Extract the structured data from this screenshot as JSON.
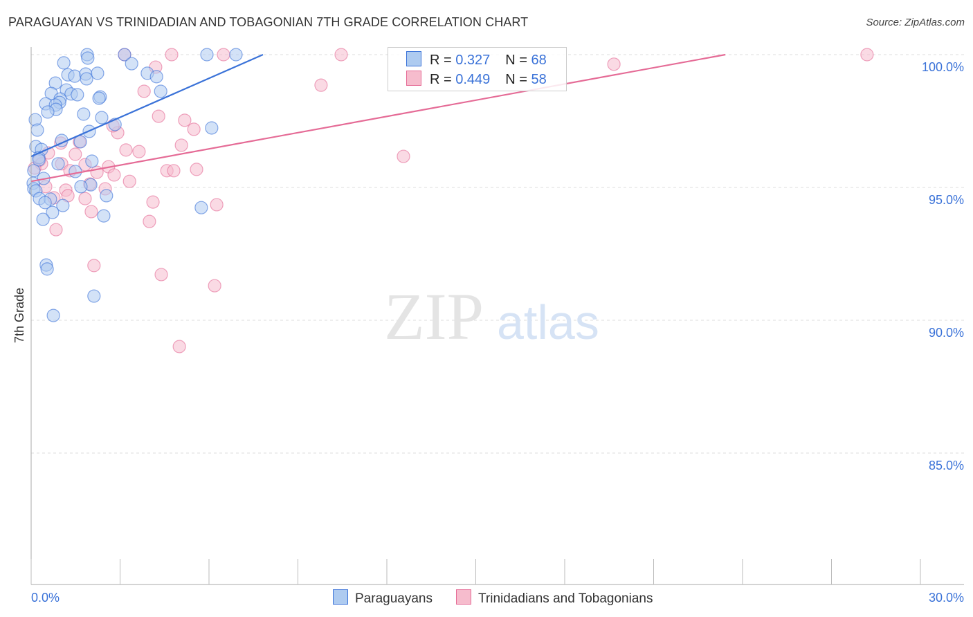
{
  "title": "PARAGUAYAN VS TRINIDADIAN AND TOBAGONIAN 7TH GRADE CORRELATION CHART",
  "source": "Source: ZipAtlas.com",
  "watermark": "ZIPatlas",
  "colors": {
    "blue": "#3a72d8",
    "blue_fill": "#aecbf0",
    "pink": "#e56b96",
    "pink_fill": "#f6bccd",
    "axis_label": "#3a72d8"
  },
  "legend": {
    "rows": [
      {
        "r_label": "R = ",
        "r": "0.327",
        "n_label": "N = ",
        "n": "68"
      },
      {
        "r_label": "R = ",
        "r": "0.449",
        "n_label": "N = ",
        "n": "58"
      }
    ],
    "bottom": [
      "Paraguayans",
      "Trinidadians and Tobagonians"
    ]
  },
  "chart_data": {
    "type": "scatter",
    "title": "PARAGUAYAN VS TRINIDADIAN AND TOBAGONIAN 7TH GRADE CORRELATION CHART",
    "xlabel": "",
    "ylabel": "7th Grade",
    "xlim": [
      0,
      30
    ],
    "ylim": [
      80,
      100.4
    ],
    "x_tick_labels": [
      "0.0%",
      "30.0%"
    ],
    "y_ticks": [
      100,
      95,
      90,
      85
    ],
    "y_tick_labels": [
      "100.0%",
      "95.0%",
      "90.0%",
      "85.0%"
    ],
    "grid": true,
    "series": [
      {
        "name": "Paraguayans",
        "r": 0.327,
        "n": 68,
        "trend": [
          [
            0,
            96.17
          ],
          [
            7.82,
            100
          ]
        ],
        "points": [
          [
            1.89,
            100
          ],
          [
            1.91,
            99.87
          ],
          [
            3.15,
            100
          ],
          [
            5.93,
            100
          ],
          [
            6.91,
            100
          ],
          [
            1.1,
            99.69
          ],
          [
            3.39,
            99.66
          ],
          [
            1.24,
            99.24
          ],
          [
            1.47,
            99.19
          ],
          [
            1.84,
            99.27
          ],
          [
            2.24,
            99.3
          ],
          [
            3.92,
            99.3
          ],
          [
            4.23,
            99.17
          ],
          [
            1.87,
            99.09
          ],
          [
            0.82,
            98.93
          ],
          [
            1.19,
            98.67
          ],
          [
            0.68,
            98.54
          ],
          [
            1.35,
            98.52
          ],
          [
            1.56,
            98.49
          ],
          [
            4.37,
            98.62
          ],
          [
            2.33,
            98.41
          ],
          [
            2.29,
            98.36
          ],
          [
            0.98,
            98.33
          ],
          [
            0.96,
            98.2
          ],
          [
            0.49,
            98.15
          ],
          [
            0.82,
            98.1
          ],
          [
            0.84,
            97.94
          ],
          [
            0.56,
            97.84
          ],
          [
            1.77,
            97.76
          ],
          [
            2.38,
            97.63
          ],
          [
            0.14,
            97.55
          ],
          [
            2.83,
            97.37
          ],
          [
            6.09,
            97.24
          ],
          [
            0.21,
            97.16
          ],
          [
            1.96,
            97.11
          ],
          [
            1.03,
            96.77
          ],
          [
            1.66,
            96.72
          ],
          [
            0.16,
            96.54
          ],
          [
            0.35,
            96.43
          ],
          [
            0.26,
            96.12
          ],
          [
            0.26,
            96.04
          ],
          [
            2.05,
            95.99
          ],
          [
            0.91,
            95.89
          ],
          [
            1.49,
            95.6
          ],
          [
            0.09,
            95.63
          ],
          [
            0.42,
            95.34
          ],
          [
            0.07,
            95.16
          ],
          [
            2.01,
            95.1
          ],
          [
            1.68,
            95.03
          ],
          [
            0.09,
            94.95
          ],
          [
            0.16,
            94.87
          ],
          [
            2.54,
            94.69
          ],
          [
            0.28,
            94.58
          ],
          [
            0.65,
            94.56
          ],
          [
            0.47,
            94.43
          ],
          [
            1.07,
            94.32
          ],
          [
            5.74,
            94.24
          ],
          [
            0.72,
            94.06
          ],
          [
            2.45,
            93.93
          ],
          [
            0.4,
            93.8
          ],
          [
            0.51,
            92.08
          ],
          [
            0.54,
            91.93
          ],
          [
            2.12,
            90.91
          ],
          [
            0.75,
            90.18
          ]
        ]
      },
      {
        "name": "Trinidadians and Tobagonians",
        "r": 0.449,
        "n": 58,
        "trend": [
          [
            0,
            95.23
          ],
          [
            23.42,
            100
          ]
        ],
        "points": [
          [
            3.15,
            100
          ],
          [
            4.74,
            100
          ],
          [
            6.49,
            100
          ],
          [
            10.46,
            100
          ],
          [
            28.2,
            100
          ],
          [
            19.66,
            99.64
          ],
          [
            4.2,
            99.53
          ],
          [
            9.78,
            98.85
          ],
          [
            3.81,
            98.62
          ],
          [
            4.3,
            97.68
          ],
          [
            5.18,
            97.53
          ],
          [
            5.49,
            97.19
          ],
          [
            2.92,
            97.06
          ],
          [
            2.76,
            97.32
          ],
          [
            1.0,
            96.67
          ],
          [
            1.63,
            96.72
          ],
          [
            5.07,
            96.59
          ],
          [
            3.2,
            96.41
          ],
          [
            3.64,
            96.35
          ],
          [
            1.49,
            96.25
          ],
          [
            0.58,
            96.3
          ],
          [
            12.56,
            96.17
          ],
          [
            0.28,
            96.02
          ],
          [
            0.35,
            95.89
          ],
          [
            1.03,
            95.89
          ],
          [
            0.12,
            95.73
          ],
          [
            1.82,
            95.86
          ],
          [
            2.61,
            95.78
          ],
          [
            4.58,
            95.63
          ],
          [
            4.81,
            95.63
          ],
          [
            5.58,
            95.68
          ],
          [
            2.8,
            95.47
          ],
          [
            1.31,
            95.63
          ],
          [
            2.22,
            95.57
          ],
          [
            3.32,
            95.23
          ],
          [
            0.49,
            95.03
          ],
          [
            1.17,
            94.9
          ],
          [
            2.5,
            94.95
          ],
          [
            1.98,
            95.13
          ],
          [
            1.24,
            94.69
          ],
          [
            1.82,
            94.58
          ],
          [
            0.77,
            94.61
          ],
          [
            4.11,
            94.45
          ],
          [
            6.26,
            94.35
          ],
          [
            2.03,
            94.09
          ],
          [
            3.99,
            93.72
          ],
          [
            0.84,
            93.41
          ],
          [
            2.12,
            92.06
          ],
          [
            4.39,
            91.72
          ],
          [
            6.19,
            91.3
          ],
          [
            5.0,
            89.01
          ]
        ]
      }
    ]
  }
}
